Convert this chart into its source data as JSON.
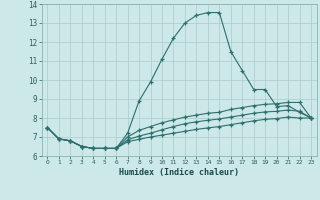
{
  "xlabel": "Humidex (Indice chaleur)",
  "bg_color": "#cde8e8",
  "grid_color": "#aacccc",
  "line_color": "#2d6e6e",
  "xlim": [
    -0.5,
    23.5
  ],
  "ylim": [
    6,
    14
  ],
  "xticks": [
    0,
    1,
    2,
    3,
    4,
    5,
    6,
    7,
    8,
    9,
    10,
    11,
    12,
    13,
    14,
    15,
    16,
    17,
    18,
    19,
    20,
    21,
    22,
    23
  ],
  "yticks": [
    6,
    7,
    8,
    9,
    10,
    11,
    12,
    13,
    14
  ],
  "series": [
    {
      "x": [
        0,
        1,
        2,
        3,
        4,
        5,
        6,
        7,
        8,
        9,
        10,
        11,
        12,
        13,
        14,
        15,
        16,
        17,
        18,
        19,
        20,
        21,
        22,
        23
      ],
      "y": [
        7.5,
        6.9,
        6.8,
        6.5,
        6.4,
        6.4,
        6.4,
        7.2,
        8.9,
        9.9,
        11.1,
        12.2,
        13.0,
        13.4,
        13.55,
        13.55,
        11.5,
        10.5,
        9.5,
        9.5,
        8.6,
        8.65,
        8.3,
        8.0
      ]
    },
    {
      "x": [
        0,
        1,
        2,
        3,
        4,
        5,
        6,
        7,
        8,
        9,
        10,
        11,
        12,
        13,
        14,
        15,
        16,
        17,
        18,
        19,
        20,
        21,
        22,
        23
      ],
      "y": [
        7.5,
        6.9,
        6.8,
        6.5,
        6.4,
        6.4,
        6.4,
        7.0,
        7.35,
        7.55,
        7.75,
        7.9,
        8.05,
        8.15,
        8.25,
        8.3,
        8.45,
        8.55,
        8.65,
        8.72,
        8.75,
        8.82,
        8.82,
        8.0
      ]
    },
    {
      "x": [
        0,
        1,
        2,
        3,
        4,
        5,
        6,
        7,
        8,
        9,
        10,
        11,
        12,
        13,
        14,
        15,
        16,
        17,
        18,
        19,
        20,
        21,
        22,
        23
      ],
      "y": [
        7.5,
        6.9,
        6.8,
        6.5,
        6.4,
        6.4,
        6.4,
        6.85,
        7.05,
        7.2,
        7.38,
        7.55,
        7.7,
        7.8,
        7.88,
        7.95,
        8.05,
        8.15,
        8.25,
        8.32,
        8.35,
        8.42,
        8.35,
        8.0
      ]
    },
    {
      "x": [
        0,
        1,
        2,
        3,
        4,
        5,
        6,
        7,
        8,
        9,
        10,
        11,
        12,
        13,
        14,
        15,
        16,
        17,
        18,
        19,
        20,
        21,
        22,
        23
      ],
      "y": [
        7.5,
        6.9,
        6.8,
        6.5,
        6.4,
        6.4,
        6.4,
        6.75,
        6.88,
        7.0,
        7.1,
        7.2,
        7.3,
        7.4,
        7.48,
        7.55,
        7.65,
        7.75,
        7.85,
        7.93,
        7.97,
        8.05,
        8.0,
        8.0
      ]
    }
  ]
}
